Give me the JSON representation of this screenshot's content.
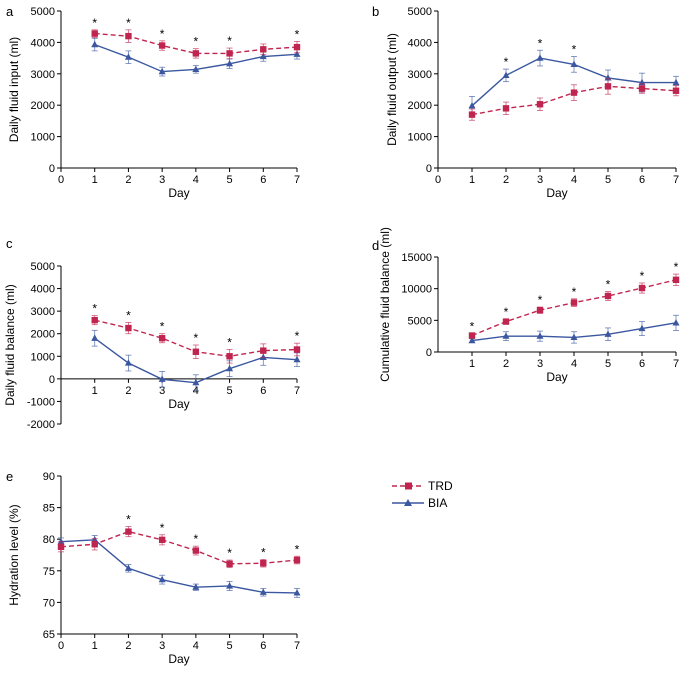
{
  "legend": {
    "entries": [
      {
        "name": "TRD",
        "color": "#c0254f",
        "marker": "square",
        "dash": "dashed"
      },
      {
        "name": "BIA",
        "color": "#3a57a0",
        "marker": "triangle",
        "dash": "solid"
      }
    ]
  },
  "chart_data": [
    {
      "id": "a",
      "panel_label": "a",
      "type": "line",
      "xlabel": "Day",
      "ylabel": "Daily fluid input (ml)",
      "xlim": [
        0,
        7
      ],
      "ylim": [
        0,
        5000
      ],
      "xticks": [
        0,
        1,
        2,
        3,
        4,
        5,
        6,
        7
      ],
      "yticks": [
        0,
        1000,
        2000,
        3000,
        4000,
        5000
      ],
      "series": [
        {
          "name": "TRD",
          "x": [
            1,
            2,
            3,
            4,
            5,
            6,
            7
          ],
          "values": [
            4280,
            4200,
            3900,
            3650,
            3650,
            3780,
            3850
          ],
          "err": [
            120,
            200,
            150,
            150,
            170,
            170,
            180
          ]
        },
        {
          "name": "BIA",
          "x": [
            1,
            2,
            3,
            4,
            5,
            6,
            7
          ],
          "values": [
            3930,
            3530,
            3070,
            3140,
            3320,
            3550,
            3620
          ],
          "err": [
            200,
            200,
            140,
            120,
            150,
            150,
            150
          ]
        }
      ],
      "significance": [
        1,
        2,
        3,
        4,
        5,
        7
      ]
    },
    {
      "id": "b",
      "panel_label": "b",
      "type": "line",
      "xlabel": "Day",
      "ylabel": "Daily fluid output (ml)",
      "xlim": [
        0,
        7
      ],
      "ylim": [
        0,
        5000
      ],
      "xticks": [
        0,
        1,
        2,
        3,
        4,
        5,
        6,
        7
      ],
      "yticks": [
        0,
        1000,
        2000,
        3000,
        4000,
        5000
      ],
      "series": [
        {
          "name": "TRD",
          "x": [
            1,
            2,
            3,
            4,
            5,
            6,
            7
          ],
          "values": [
            1700,
            1900,
            2030,
            2400,
            2600,
            2530,
            2460
          ],
          "err": [
            180,
            200,
            200,
            250,
            250,
            150,
            160
          ]
        },
        {
          "name": "BIA",
          "x": [
            1,
            2,
            3,
            4,
            5,
            6,
            7
          ],
          "values": [
            1980,
            2950,
            3500,
            3300,
            2870,
            2720,
            2720
          ],
          "err": [
            300,
            200,
            250,
            250,
            250,
            300,
            200
          ]
        }
      ],
      "significance": [
        2,
        3,
        4
      ]
    },
    {
      "id": "c",
      "panel_label": "c",
      "type": "line",
      "xlabel": "Day",
      "ylabel": "Daily fluid balance (ml)",
      "xlim": [
        0,
        7
      ],
      "ylim": [
        -2000,
        5000
      ],
      "xticks": [
        1,
        2,
        3,
        4,
        5,
        6,
        7
      ],
      "yticks": [
        -2000,
        -1000,
        0,
        1000,
        2000,
        3000,
        4000,
        5000
      ],
      "series": [
        {
          "name": "TRD",
          "x": [
            1,
            2,
            3,
            4,
            5,
            6,
            7
          ],
          "values": [
            2600,
            2250,
            1800,
            1200,
            1000,
            1250,
            1300
          ],
          "err": [
            200,
            250,
            200,
            300,
            300,
            300,
            280
          ]
        },
        {
          "name": "BIA",
          "x": [
            1,
            2,
            3,
            4,
            5,
            6,
            7
          ],
          "values": [
            1800,
            700,
            -20,
            -170,
            450,
            950,
            850
          ],
          "err": [
            350,
            350,
            350,
            350,
            350,
            350,
            300
          ]
        }
      ],
      "significance": [
        1,
        2,
        3,
        4,
        5,
        7
      ]
    },
    {
      "id": "d",
      "panel_label": "d",
      "type": "line",
      "xlabel": "Day",
      "ylabel": "Cumulative fluid balance (ml)",
      "xlim": [
        0,
        7
      ],
      "ylim": [
        0,
        15000
      ],
      "xticks": [
        1,
        2,
        3,
        4,
        5,
        6,
        7
      ],
      "yticks": [
        0,
        5000,
        10000,
        15000
      ],
      "series": [
        {
          "name": "TRD",
          "x": [
            1,
            2,
            3,
            4,
            5,
            6,
            7
          ],
          "values": [
            2600,
            4800,
            6600,
            7800,
            8850,
            10100,
            11400
          ],
          "err": [
            300,
            400,
            500,
            600,
            700,
            800,
            900
          ]
        },
        {
          "name": "BIA",
          "x": [
            1,
            2,
            3,
            4,
            5,
            6,
            7
          ],
          "values": [
            1800,
            2500,
            2500,
            2300,
            2800,
            3700,
            4600
          ],
          "err": [
            300,
            700,
            800,
            900,
            1000,
            1100,
            1200
          ]
        }
      ],
      "significance": [
        1,
        2,
        3,
        4,
        5,
        6,
        7
      ]
    },
    {
      "id": "e",
      "panel_label": "e",
      "type": "line",
      "xlabel": "Day",
      "ylabel": "Hydration level (%)",
      "xlim": [
        0,
        7
      ],
      "ylim": [
        65,
        90
      ],
      "xticks": [
        0,
        1,
        2,
        3,
        4,
        5,
        6,
        7
      ],
      "yticks": [
        65,
        70,
        75,
        80,
        85,
        90
      ],
      "series": [
        {
          "name": "TRD",
          "x": [
            0,
            1,
            2,
            3,
            4,
            5,
            6,
            7
          ],
          "values": [
            78.8,
            79.2,
            81.2,
            79.9,
            78.2,
            76.1,
            76.2,
            76.7
          ],
          "err": [
            0.8,
            0.9,
            0.8,
            0.8,
            0.7,
            0.6,
            0.6,
            0.6
          ]
        },
        {
          "name": "BIA",
          "x": [
            0,
            1,
            2,
            3,
            4,
            5,
            6,
            7
          ],
          "values": [
            79.6,
            79.9,
            75.4,
            73.6,
            72.4,
            72.6,
            71.6,
            71.5
          ],
          "err": [
            0.6,
            0.7,
            0.6,
            0.7,
            0.5,
            0.7,
            0.6,
            0.7
          ]
        }
      ],
      "significance": [
        2,
        3,
        4,
        5,
        6,
        7
      ]
    }
  ]
}
